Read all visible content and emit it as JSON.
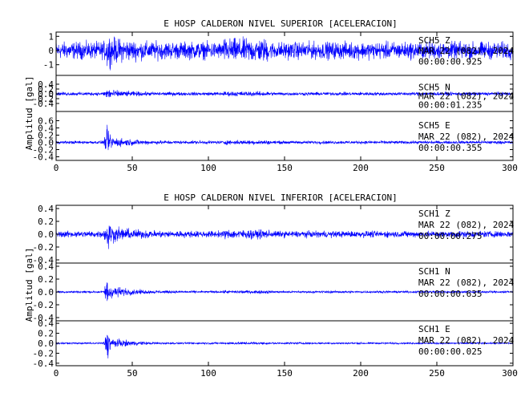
{
  "chart_data": [
    {
      "type": "line",
      "title": "E HOSP CALDERON NIVEL SUPERIOR [ACELERACION]",
      "ylabel": "Amplitud [gal]",
      "xlabel": "",
      "xlim": [
        0,
        300
      ],
      "x_ticks": [
        0,
        50,
        100,
        150,
        200,
        250,
        300
      ],
      "line_color": "#0000ff",
      "traces": [
        {
          "channel": "SCH5   Z",
          "date": "MAR 22 (082), 2024",
          "start_time": "00:00:00.925",
          "ylim": [
            -1.3,
            1.3
          ],
          "y_ticks": [
            -1,
            0,
            1
          ],
          "y_tick_labels": [
            "-1",
            "0",
            "1"
          ],
          "background_amplitude": 0.85,
          "event_peak": 1.3
        },
        {
          "channel": "SCH5   N",
          "date": "MAR 22 (082), 2024",
          "start_time": "00:00:01.235",
          "ylim": [
            -0.5,
            0.5
          ],
          "y_ticks": [
            -0.4,
            -0.2,
            0.0,
            0.2,
            0.4
          ],
          "y_tick_labels": [
            "-0.4",
            "-0.2",
            "0.0",
            "0.2",
            "0.4"
          ],
          "background_amplitude": 0.1,
          "event_peak": 0.35
        },
        {
          "channel": "SCH5   E",
          "date": "MAR 22 (082), 2024",
          "start_time": "00:00:00.355",
          "ylim": [
            -0.5,
            0.7
          ],
          "y_ticks": [
            -0.4,
            -0.2,
            0.0,
            0.2,
            0.4,
            0.6
          ],
          "y_tick_labels": [
            "-0.4",
            "-0.2",
            "0.0",
            "0.2",
            "0.4",
            "0.6"
          ],
          "background_amplitude": 0.06,
          "event_peak": 0.45
        }
      ]
    },
    {
      "type": "line",
      "title": "E HOSP CALDERON NIVEL INFERIOR [ACELERACION]",
      "ylabel": "Amplitud [gal]",
      "xlabel": "",
      "xlim": [
        0,
        300
      ],
      "x_ticks": [
        0,
        50,
        100,
        150,
        200,
        250,
        300
      ],
      "line_color": "#0000ff",
      "traces": [
        {
          "channel": "SCH1   Z",
          "date": "MAR 22 (082), 2024",
          "start_time": "00:00:00.275",
          "ylim": [
            -0.45,
            0.45
          ],
          "y_ticks": [
            -0.4,
            -0.2,
            0.0,
            0.2,
            0.4
          ],
          "y_tick_labels": [
            "-0.4",
            "-0.2",
            "0.0",
            "0.2",
            "0.4"
          ],
          "background_amplitude": 0.07,
          "event_peak": 0.3
        },
        {
          "channel": "SCH1   N",
          "date": "MAR 22 (082), 2024",
          "start_time": "00:00:00.635",
          "ylim": [
            -0.45,
            0.45
          ],
          "y_ticks": [
            -0.4,
            -0.2,
            0.0,
            0.2,
            0.4
          ],
          "y_tick_labels": [
            "-0.4",
            "-0.2",
            "0.0",
            "0.2",
            "0.4"
          ],
          "background_amplitude": 0.025,
          "event_peak": 0.3
        },
        {
          "channel": "SCH1   E",
          "date": "MAR 22 (082), 2024",
          "start_time": "00:00:00.025",
          "ylim": [
            -0.45,
            0.45
          ],
          "y_ticks": [
            -0.4,
            -0.2,
            0.0,
            0.2,
            0.4
          ],
          "y_tick_labels": [
            "-0.4",
            "-0.2",
            "0.0",
            "0.2",
            "0.4"
          ],
          "background_amplitude": 0.025,
          "event_peak": 0.33
        }
      ]
    }
  ]
}
